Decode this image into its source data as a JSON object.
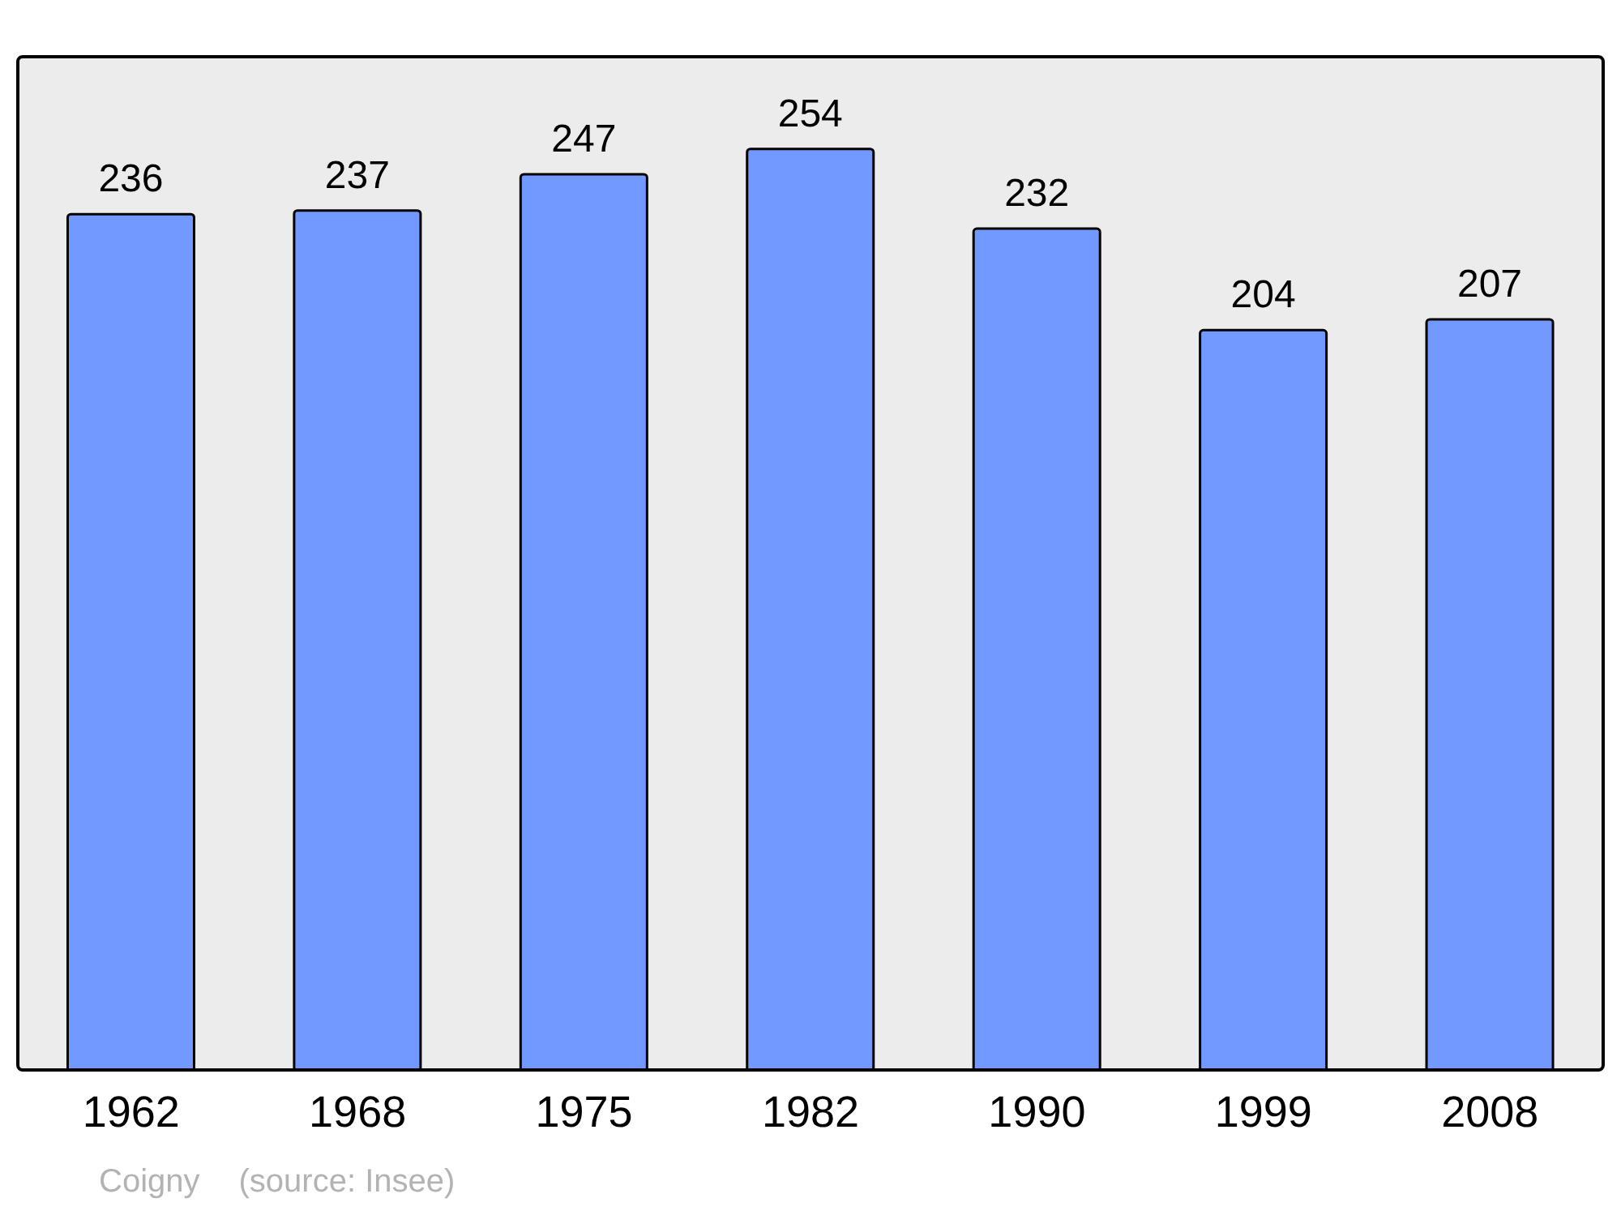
{
  "chart_data": {
    "type": "bar",
    "categories": [
      "1962",
      "1968",
      "1975",
      "1982",
      "1990",
      "1999",
      "2008"
    ],
    "values": [
      236,
      237,
      247,
      254,
      232,
      204,
      207
    ],
    "color": "#7299ff",
    "data_labels": true,
    "grid": false,
    "annotations": [
      "Coigny",
      "(source: Insee)"
    ]
  }
}
